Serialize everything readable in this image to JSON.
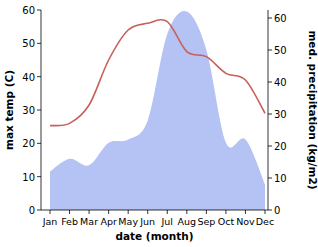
{
  "chart_data": {
    "type": "line",
    "x_label": "date (month)",
    "y_label": "max temp (C)",
    "y2_label": "med. precipitation (kg/m2)",
    "categories": [
      "Jan",
      "Feb",
      "Mar",
      "Apr",
      "May",
      "Jun",
      "Jul",
      "Aug",
      "Sep",
      "Oct",
      "Nov",
      "Dec"
    ],
    "series": [
      {
        "name": "max temp",
        "type": "line",
        "color": "#c8605a",
        "line_style": "solid",
        "values": [
          25.3,
          26,
          31.5,
          45,
          54,
          56,
          56.5,
          47.5,
          46,
          41,
          39,
          29
        ]
      },
      {
        "name": "med. precipitation",
        "type": "area",
        "color": "#b4c2f4",
        "axis": "y2",
        "values": [
          12,
          16,
          14,
          21,
          22,
          28,
          55,
          62,
          50,
          21,
          22,
          8
        ]
      }
    ],
    "ylim": [
      0,
      60
    ],
    "yticks": [
      0,
      10,
      20,
      30,
      40,
      50,
      60
    ],
    "y2lim": [
      0,
      62.5
    ],
    "y2ticks": [
      0,
      10,
      20,
      30,
      40,
      50,
      60
    ],
    "grid": false
  }
}
